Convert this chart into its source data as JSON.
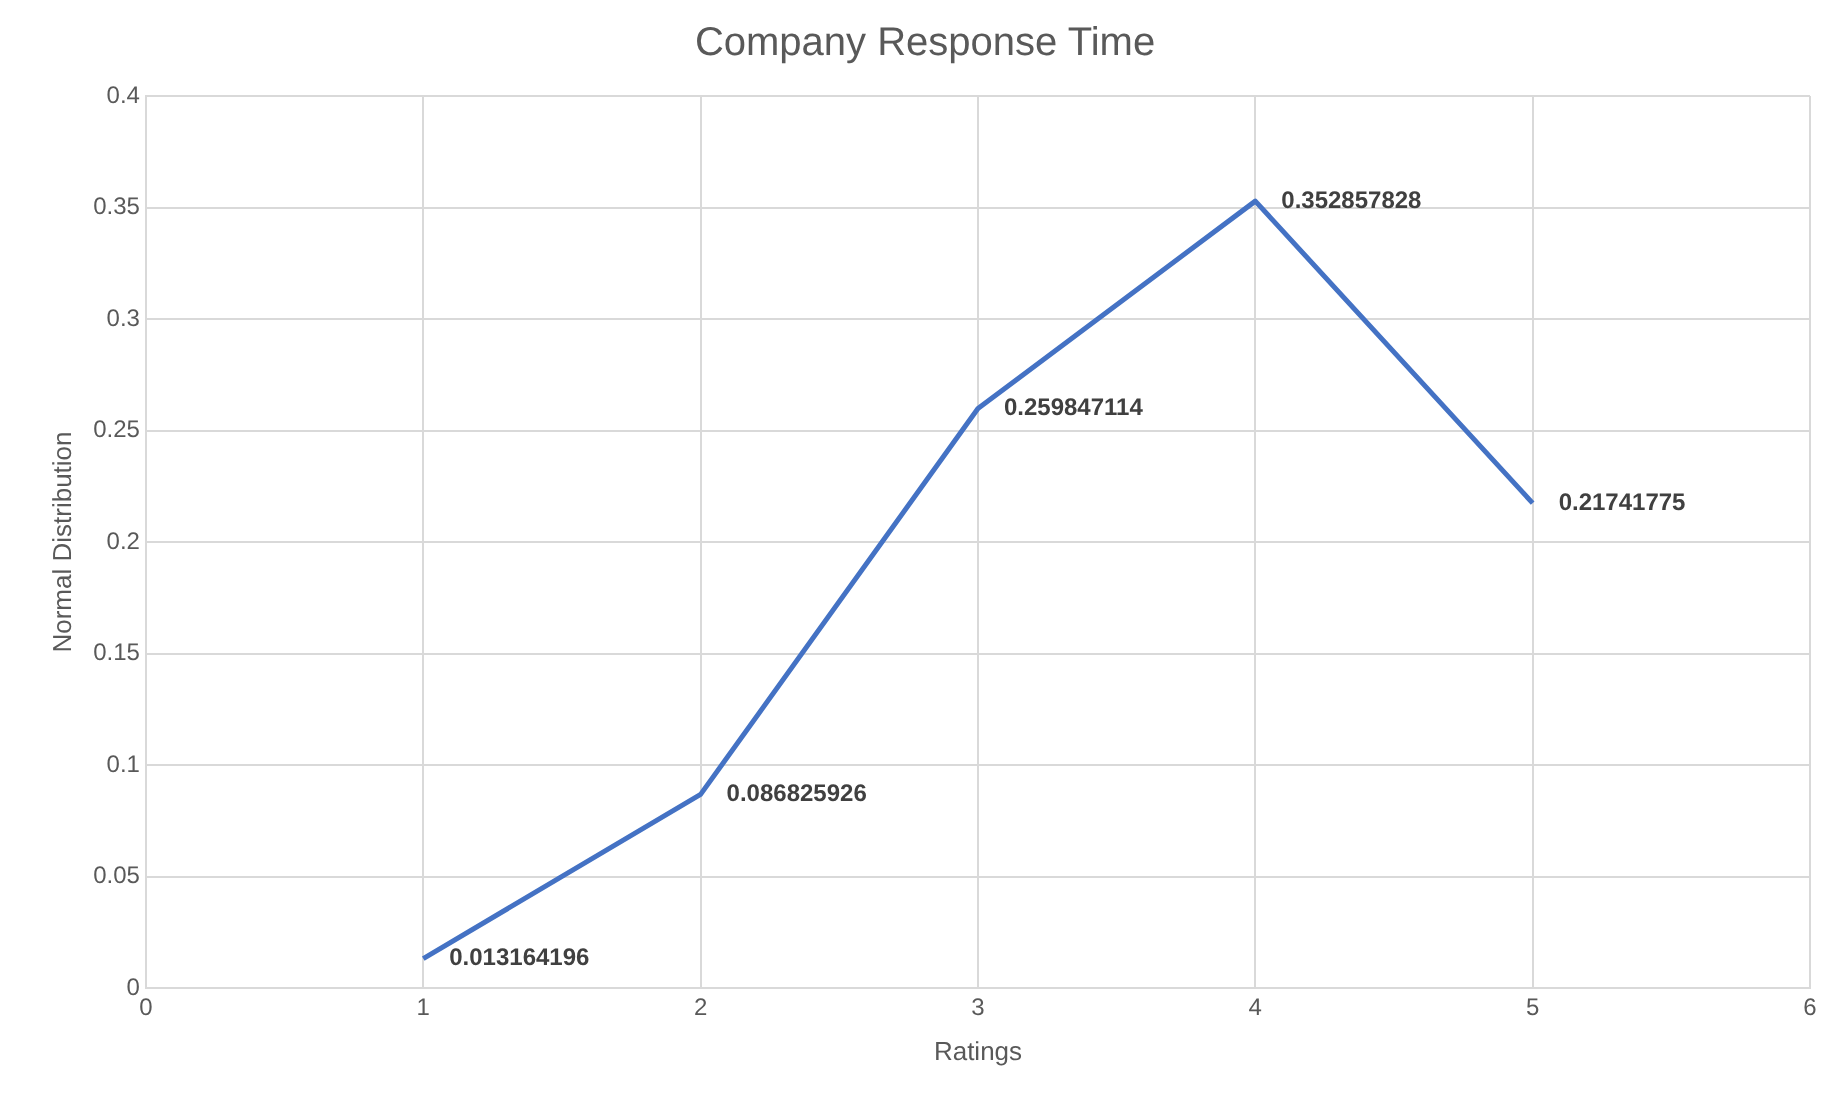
{
  "chart_data": {
    "type": "line",
    "title": "Company Response Time",
    "xlabel": "Ratings",
    "ylabel": "Normal Distribution",
    "x": [
      1,
      2,
      3,
      4,
      5
    ],
    "series": [
      {
        "color": "#4472c4",
        "values": [
          0.013164196,
          0.086825926,
          0.259847114,
          0.352857828,
          0.21741775
        ]
      }
    ],
    "xlim": [
      0,
      6
    ],
    "xticks": [
      0,
      1,
      2,
      3,
      4,
      5,
      6
    ],
    "ylim": [
      0,
      0.4
    ],
    "yticks": [
      0,
      0.05,
      0.1,
      0.15,
      0.2,
      0.25,
      0.3,
      0.35,
      0.4
    ],
    "grid": true,
    "legend": false,
    "marker": "none",
    "line_style": "solid",
    "data_labels": true
  }
}
